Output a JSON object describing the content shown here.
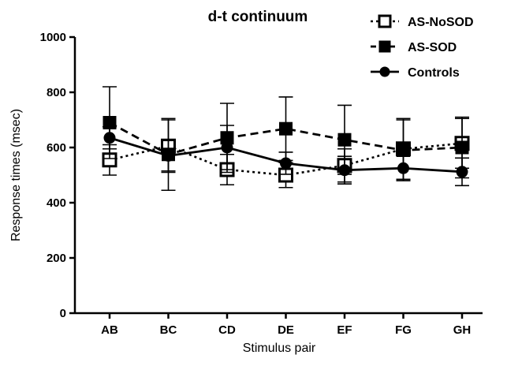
{
  "chart_data": {
    "type": "line",
    "title": "d-t continuum",
    "xlabel": "Stimulus pair",
    "ylabel": "Response times (msec)",
    "categories": [
      "AB",
      "BC",
      "CD",
      "DE",
      "EF",
      "FG",
      "GH"
    ],
    "ylim": [
      0,
      1000
    ],
    "yticks": [
      0,
      200,
      400,
      600,
      800,
      1000
    ],
    "grid": false,
    "legend_position": "top-right",
    "series": [
      {
        "name": "AS-NoSOD",
        "marker": "open-square",
        "line_style": "dotted",
        "values": [
          555,
          605,
          520,
          500,
          535,
          595,
          615
        ],
        "errors": [
          55,
          95,
          55,
          45,
          60,
          110,
          90
        ]
      },
      {
        "name": "AS-SOD",
        "marker": "filled-square",
        "line_style": "dashed",
        "values": [
          690,
          575,
          635,
          668,
          628,
          590,
          600
        ],
        "errors": [
          130,
          130,
          125,
          115,
          125,
          110,
          110
        ]
      },
      {
        "name": "Controls",
        "marker": "filled-circle",
        "line_style": "solid",
        "values": [
          635,
          570,
          600,
          543,
          518,
          525,
          512
        ],
        "errors": [
          40,
          55,
          80,
          40,
          50,
          45,
          50
        ]
      }
    ]
  },
  "colors": {
    "ink": "#000000",
    "background": "#ffffff"
  }
}
